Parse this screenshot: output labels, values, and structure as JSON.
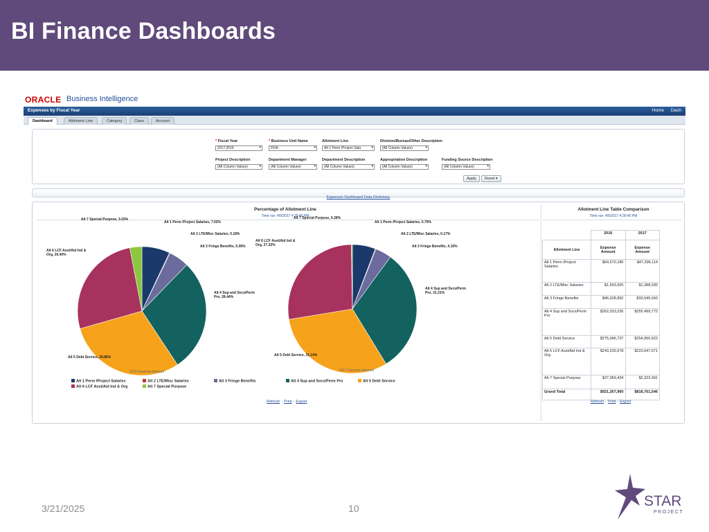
{
  "slide": {
    "title": "BI Finance Dashboards",
    "date": "3/21/2025",
    "page_number": "10",
    "logo": {
      "word": "STAR",
      "sub": "PROJECT"
    }
  },
  "obi": {
    "brand_oracle": "ORACLE",
    "brand_bi": "Business Intelligence",
    "nav_title": "Expenses by Fiscal Year",
    "nav_links": [
      "Home",
      "Dash"
    ],
    "tabs": [
      "Dashboard",
      "Allotment Line",
      "Category",
      "Class",
      "Account"
    ],
    "prompts": [
      {
        "label": "Fiscal Year",
        "required": true,
        "value": "2017;2016"
      },
      {
        "label": "Business Unit Name",
        "required": true,
        "value": "DOA"
      },
      {
        "label": "Allotment Line",
        "required": false,
        "value": "Alt 1 Perm /Project Sala"
      },
      {
        "label": "Division/Bureau/Other Description",
        "required": false,
        "value": "(All Column Values)"
      },
      {
        "label": "Project Description",
        "required": false,
        "value": "(All Column Values)"
      },
      {
        "label": "Department Manager",
        "required": false,
        "value": "(All Column Values)"
      },
      {
        "label": "Department Description",
        "required": false,
        "value": "(All Column Values)"
      },
      {
        "label": "Appropriation Description",
        "required": false,
        "value": "(All Column Values)"
      },
      {
        "label": "Funding Source Description",
        "required": false,
        "value": "(All Column Values)"
      }
    ],
    "apply_label": "Apply",
    "reset_label": "Reset ▾",
    "dictionary_link": "Expenses Dashboard Data Dictionary",
    "left_section": {
      "title": "Percentage of Allotment Line",
      "time": "Time run: 4/5/2017 4:30:45 PM"
    },
    "right_section": {
      "title": "Allotment Line Table Comparison",
      "time": "Time run: 4/5/2017 4:30:45 PM"
    },
    "footer_links": [
      "Refresh",
      "Print",
      "Export"
    ]
  },
  "colors": {
    "title_band": "#5f4a7b",
    "alt1": "#1b3a6b",
    "alt2": "#c0392b",
    "alt3": "#6b6b9e",
    "alt4": "#13625f",
    "alt5": "#f7a21b",
    "alt6": "#a8325e",
    "alt7": "#8dc63f"
  },
  "chart_data": [
    {
      "type": "pie",
      "caption": "2016 Expense Amount",
      "categories": [
        "Alt 1 Perm /Project Salaries",
        "Alt 2 LTE/Misc Salaries",
        "Alt 3 Fringe Benefits",
        "Alt 4 Sup and Svcs/Perm Pro",
        "Alt 5 Debt Service",
        "Alt 6 LCF Asst/Aid Ind & Org",
        "Alt 7 Special Purpose"
      ],
      "values": [
        7.02,
        0.18,
        5.06,
        28.44,
        29.86,
        26.4,
        3.03
      ],
      "labels": [
        "Alt 1 Perm /Project Salaries, 7.02%",
        "Alt 2 LTE/Misc Salaries, 0.18%",
        "Alt 3 Fringe Benefits, 5.06%",
        "Alt 4 Sup and Svcs/Perm Pro, 28.44%",
        "Alt 5 Debt Service, 29.86%",
        "Alt 6 LCF Asst/Aid Ind & Org, 26.40%",
        "Alt 7 Special Purpose, 3.03%"
      ]
    },
    {
      "type": "pie",
      "caption": "2017 Expense Amount",
      "categories": [
        "Alt 1 Perm /Project Salaries",
        "Alt 2 LTE/Misc Salaries",
        "Alt 3 Fringe Benefits",
        "Alt 4 Sup and Svcs/Perm Pro",
        "Alt 5 Debt Service",
        "Alt 6 LCF Asst/Aid Ind & Org",
        "Alt 7 Special Purpose"
      ],
      "values": [
        5.79,
        0.17,
        4.1,
        31.21,
        31.14,
        27.32,
        0.28
      ],
      "labels": [
        "Alt 1 Perm /Project Salaries, 5.79%",
        "Alt 2 LTE/Misc Salaries, 0.17%",
        "Alt 3 Fringe Benefits, 4.10%",
        "Alt 4 Sup and Svcs/Perm Pro, 31.21%",
        "Alt 5 Debt Service, 31.14%",
        "Alt 6 LCF Asst/Aid Ind & Org, 27.32%",
        "Alt 7 Special Purpose, 0.28%"
      ]
    },
    {
      "type": "table",
      "columns": [
        "Allotment Line",
        "2016 Expense Amount",
        "2017 Expense Amount"
      ],
      "header_years": [
        "2016",
        "2017"
      ],
      "header_metric": "Expense Amount",
      "header_line": "Allotment Line",
      "rows": [
        [
          "Alt 1 Perm /Project Salaries",
          "$64,670,185",
          "$47,396,114"
        ],
        [
          "Alt 2 LTE/Misc Salaries",
          "$1,693,505",
          "$1,388,935"
        ],
        [
          "Alt 3 Fringe Benefits",
          "$46,628,892",
          "$33,549,043"
        ],
        [
          "Alt 4 Sup and Svcs/Perm Pro",
          "$262,033,230",
          "$255,499,772"
        ],
        [
          "Alt 5 Debt Service",
          "$275,046,737",
          "$254,956,522"
        ],
        [
          "Alt 6 LCF Asst/Aid Ind & Org",
          "$243,235,978",
          "$223,647,671"
        ],
        [
          "Alt 7 Special Purpose",
          "$27,959,434",
          "$2,323,491"
        ]
      ],
      "total": [
        "Grand Total",
        "$921,267,960",
        "$818,761,546"
      ]
    }
  ],
  "legend": [
    {
      "label": "Alt 1 Perm /Project Salaries",
      "color": "#1b3a6b"
    },
    {
      "label": "Alt 2 LTE/Misc Salaries",
      "color": "#c0392b"
    },
    {
      "label": "Alt 3 Fringe Benefits",
      "color": "#6b6b9e"
    },
    {
      "label": "Alt 4 Sup and Svcs/Perm Pro",
      "color": "#13625f"
    },
    {
      "label": "Alt 5 Debt Service",
      "color": "#f7a21b"
    },
    {
      "label": "Alt 6 LCF Asst/Aid Ind & Org",
      "color": "#a8325e"
    },
    {
      "label": "Alt 7 Special Purpose",
      "color": "#8dc63f"
    }
  ]
}
